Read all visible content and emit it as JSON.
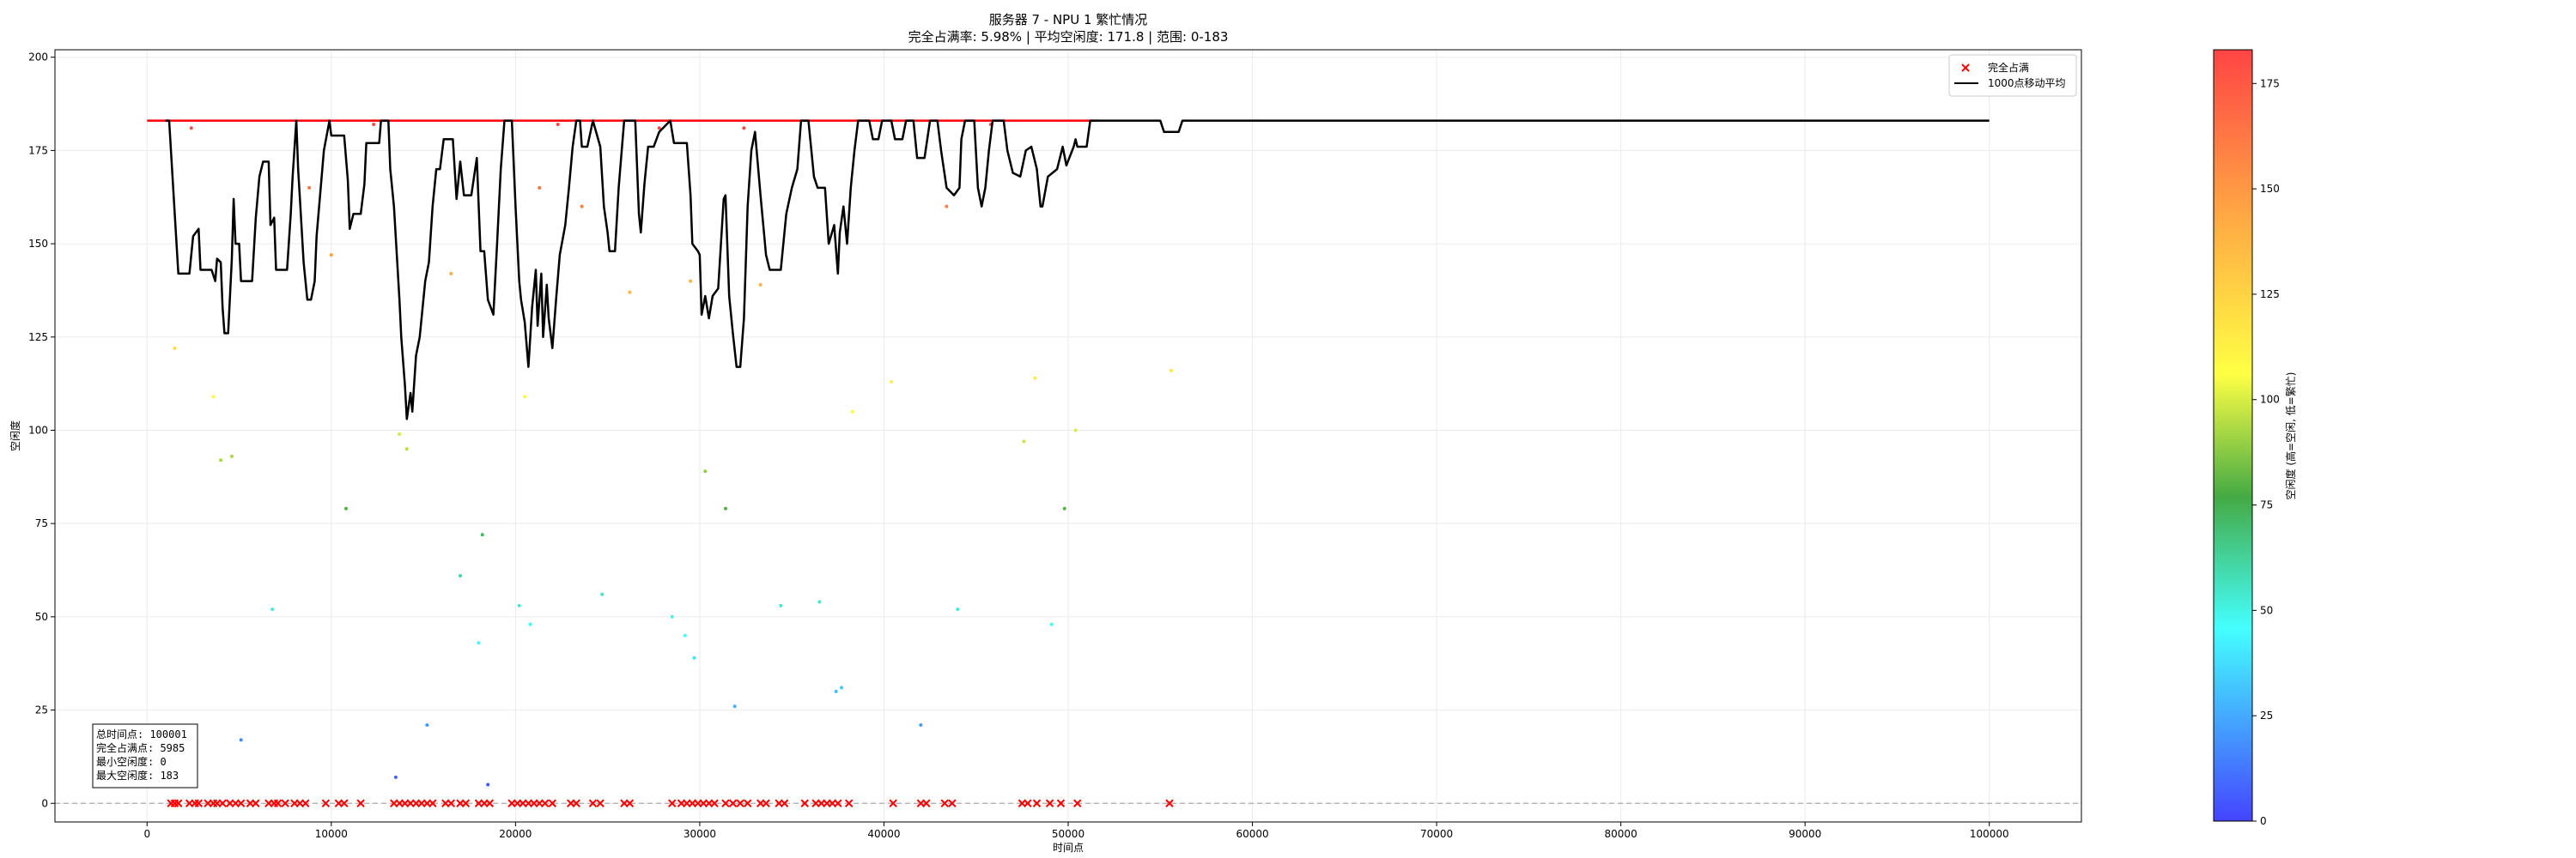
{
  "chart_data": {
    "type": "scatter",
    "title": "服务器 7 - NPU 1 繁忙情况",
    "subtitle": "完全占满率: 5.98% | 平均空闲度: 171.8 | 范围: 0-183",
    "xlabel": "时间点",
    "ylabel": "空闲度",
    "xlim": [
      -5000,
      105000
    ],
    "ylim": [
      -5,
      202
    ],
    "x_ticks": [
      0,
      10000,
      20000,
      30000,
      40000,
      50000,
      60000,
      70000,
      80000,
      90000,
      100000
    ],
    "y_ticks": [
      0,
      25,
      50,
      75,
      100,
      125,
      150,
      175,
      200
    ],
    "grid": true,
    "legend": {
      "position": "top-right",
      "entries": [
        {
          "label": "完全占满",
          "marker": "x",
          "color": "#ff0000"
        },
        {
          "label": "1000点移动平均",
          "marker": "line",
          "color": "#000000"
        }
      ]
    },
    "colorbar": {
      "label": "空闲度 (高=空闲, 低=繁忙)",
      "min": 0,
      "max": 183,
      "ticks": [
        0,
        25,
        50,
        75,
        100,
        125,
        150,
        175
      ],
      "colors": [
        "#4444ff",
        "#44ffff",
        "#44aa44",
        "#ffff44",
        "#ffaa44",
        "#ff4444"
      ]
    },
    "stats_box": [
      "总时间点: 100001",
      "完全占满点: 5985",
      "最小空闲度: 0",
      "最大空闲度: 183"
    ],
    "reference_lines": [
      {
        "y": 183,
        "x_range": [
          0,
          51500
        ],
        "color": "#ff0000"
      },
      {
        "y": 0,
        "style": "dashed",
        "color": "#aaaaaa"
      }
    ],
    "full_occupancy_x": [
      1300,
      1500,
      1700,
      2300,
      2600,
      2800,
      3300,
      3600,
      3800,
      4100,
      4500,
      4800,
      5100,
      5600,
      5900,
      6600,
      6900,
      7100,
      7500,
      8000,
      8300,
      8600,
      9700,
      10400,
      10700,
      11600,
      13400,
      13700,
      14000,
      14300,
      14600,
      14900,
      15200,
      15500,
      16200,
      16500,
      17000,
      17300,
      18000,
      18300,
      18600,
      19800,
      20100,
      20400,
      20700,
      21000,
      21300,
      21600,
      22000,
      23000,
      23300,
      24200,
      24600,
      25900,
      26200,
      28500,
      29000,
      29300,
      29600,
      29900,
      30200,
      30500,
      30800,
      31400,
      31800,
      32200,
      32600,
      33300,
      33600,
      34300,
      34600,
      35700,
      36300,
      36600,
      36900,
      37200,
      37500,
      38100,
      40500,
      42000,
      42300,
      43300,
      43700,
      47500,
      47800,
      48300,
      49000,
      49600,
      50500,
      55500
    ],
    "scatter_points": [
      [
        1500,
        122
      ],
      [
        3600,
        109
      ],
      [
        4000,
        92
      ],
      [
        4600,
        93
      ],
      [
        5100,
        17
      ],
      [
        6800,
        52
      ],
      [
        10000,
        147
      ],
      [
        10800,
        79
      ],
      [
        13500,
        7
      ],
      [
        13700,
        99
      ],
      [
        14100,
        95
      ],
      [
        15200,
        21
      ],
      [
        16500,
        142
      ],
      [
        17000,
        61
      ],
      [
        18000,
        43
      ],
      [
        18200,
        72
      ],
      [
        18500,
        5
      ],
      [
        20200,
        53
      ],
      [
        20500,
        109
      ],
      [
        20800,
        48
      ],
      [
        21300,
        165
      ],
      [
        22300,
        182
      ],
      [
        23600,
        160
      ],
      [
        24700,
        56
      ],
      [
        26200,
        137
      ],
      [
        28500,
        50
      ],
      [
        29200,
        45
      ],
      [
        29500,
        140
      ],
      [
        29700,
        39
      ],
      [
        30300,
        89
      ],
      [
        31400,
        79
      ],
      [
        31900,
        26
      ],
      [
        32400,
        181
      ],
      [
        33300,
        139
      ],
      [
        34400,
        53
      ],
      [
        36500,
        54
      ],
      [
        37400,
        30
      ],
      [
        37700,
        31
      ],
      [
        38300,
        105
      ],
      [
        40400,
        113
      ],
      [
        42000,
        21
      ],
      [
        43400,
        160
      ],
      [
        44000,
        52
      ],
      [
        47600,
        97
      ],
      [
        48200,
        114
      ],
      [
        49100,
        48
      ],
      [
        49800,
        79
      ],
      [
        50400,
        100
      ],
      [
        55600,
        116
      ],
      [
        8800,
        165
      ],
      [
        2400,
        181
      ],
      [
        12300,
        182
      ],
      [
        27800,
        181
      ],
      [
        45800,
        182
      ]
    ],
    "moving_average": [
      [
        1000,
        183
      ],
      [
        1200,
        183
      ],
      [
        1500,
        158
      ],
      [
        1700,
        142
      ],
      [
        2300,
        142
      ],
      [
        2500,
        152
      ],
      [
        2800,
        154
      ],
      [
        2900,
        143
      ],
      [
        3500,
        143
      ],
      [
        3700,
        140
      ],
      [
        3800,
        146
      ],
      [
        4000,
        145
      ],
      [
        4100,
        133
      ],
      [
        4200,
        126
      ],
      [
        4400,
        126
      ],
      [
        4600,
        146
      ],
      [
        4700,
        162
      ],
      [
        4800,
        150
      ],
      [
        5000,
        150
      ],
      [
        5100,
        140
      ],
      [
        5700,
        140
      ],
      [
        5900,
        157
      ],
      [
        6100,
        168
      ],
      [
        6300,
        172
      ],
      [
        6600,
        172
      ],
      [
        6700,
        155
      ],
      [
        6900,
        157
      ],
      [
        7000,
        143
      ],
      [
        7600,
        143
      ],
      [
        7800,
        158
      ],
      [
        7900,
        168
      ],
      [
        8100,
        183
      ],
      [
        8200,
        170
      ],
      [
        8300,
        162
      ],
      [
        8500,
        145
      ],
      [
        8700,
        135
      ],
      [
        8900,
        135
      ],
      [
        9100,
        140
      ],
      [
        9200,
        152
      ],
      [
        9600,
        175
      ],
      [
        9900,
        183
      ],
      [
        10000,
        179
      ],
      [
        10700,
        179
      ],
      [
        10900,
        167
      ],
      [
        11000,
        154
      ],
      [
        11200,
        158
      ],
      [
        11600,
        158
      ],
      [
        11800,
        166
      ],
      [
        11900,
        177
      ],
      [
        12600,
        177
      ],
      [
        12700,
        183
      ],
      [
        13100,
        183
      ],
      [
        13200,
        170
      ],
      [
        13400,
        160
      ],
      [
        13700,
        135
      ],
      [
        13800,
        125
      ],
      [
        14000,
        112
      ],
      [
        14100,
        103
      ],
      [
        14300,
        110
      ],
      [
        14400,
        105
      ],
      [
        14600,
        120
      ],
      [
        14800,
        125
      ],
      [
        15100,
        140
      ],
      [
        15300,
        145
      ],
      [
        15500,
        160
      ],
      [
        15700,
        170
      ],
      [
        15900,
        170
      ],
      [
        16100,
        178
      ],
      [
        16600,
        178
      ],
      [
        16800,
        162
      ],
      [
        17000,
        172
      ],
      [
        17200,
        163
      ],
      [
        17600,
        163
      ],
      [
        17900,
        173
      ],
      [
        18000,
        160
      ],
      [
        18100,
        148
      ],
      [
        18300,
        148
      ],
      [
        18500,
        135
      ],
      [
        18800,
        131
      ],
      [
        19000,
        150
      ],
      [
        19200,
        170
      ],
      [
        19400,
        183
      ],
      [
        19800,
        183
      ],
      [
        20000,
        160
      ],
      [
        20200,
        140
      ],
      [
        20300,
        135
      ],
      [
        20500,
        129
      ],
      [
        20700,
        117
      ],
      [
        20900,
        133
      ],
      [
        21100,
        143
      ],
      [
        21200,
        128
      ],
      [
        21400,
        142
      ],
      [
        21500,
        125
      ],
      [
        21700,
        139
      ],
      [
        21800,
        130
      ],
      [
        22000,
        122
      ],
      [
        22200,
        135
      ],
      [
        22400,
        147
      ],
      [
        22700,
        155
      ],
      [
        22900,
        165
      ],
      [
        23100,
        176
      ],
      [
        23300,
        183
      ],
      [
        23500,
        183
      ],
      [
        23600,
        176
      ],
      [
        23900,
        176
      ],
      [
        24200,
        183
      ],
      [
        24600,
        176
      ],
      [
        24800,
        160
      ],
      [
        25000,
        153
      ],
      [
        25100,
        148
      ],
      [
        25400,
        148
      ],
      [
        25600,
        165
      ],
      [
        25900,
        183
      ],
      [
        26500,
        183
      ],
      [
        26700,
        158
      ],
      [
        26800,
        153
      ],
      [
        27000,
        166
      ],
      [
        27200,
        176
      ],
      [
        27500,
        176
      ],
      [
        27800,
        180
      ],
      [
        28400,
        183
      ],
      [
        28600,
        177
      ],
      [
        29300,
        177
      ],
      [
        29500,
        163
      ],
      [
        29600,
        150
      ],
      [
        29900,
        148
      ],
      [
        30000,
        147
      ],
      [
        30100,
        131
      ],
      [
        30300,
        136
      ],
      [
        30500,
        130
      ],
      [
        30700,
        136
      ],
      [
        31000,
        138
      ],
      [
        31300,
        162
      ],
      [
        31400,
        163
      ],
      [
        31600,
        136
      ],
      [
        31800,
        126
      ],
      [
        32000,
        117
      ],
      [
        32200,
        117
      ],
      [
        32400,
        130
      ],
      [
        32600,
        160
      ],
      [
        32800,
        175
      ],
      [
        33000,
        180
      ],
      [
        33300,
        163
      ],
      [
        33600,
        147
      ],
      [
        33800,
        143
      ],
      [
        34400,
        143
      ],
      [
        34700,
        158
      ],
      [
        35000,
        165
      ],
      [
        35300,
        170
      ],
      [
        35500,
        183
      ],
      [
        35900,
        183
      ],
      [
        36200,
        168
      ],
      [
        36400,
        165
      ],
      [
        36800,
        165
      ],
      [
        37000,
        150
      ],
      [
        37300,
        155
      ],
      [
        37500,
        142
      ],
      [
        37600,
        153
      ],
      [
        37800,
        160
      ],
      [
        38000,
        150
      ],
      [
        38200,
        165
      ],
      [
        38400,
        175
      ],
      [
        38600,
        183
      ],
      [
        39200,
        183
      ],
      [
        39400,
        178
      ],
      [
        39700,
        178
      ],
      [
        39900,
        183
      ],
      [
        40400,
        183
      ],
      [
        40600,
        178
      ],
      [
        41000,
        178
      ],
      [
        41200,
        183
      ],
      [
        41600,
        183
      ],
      [
        41800,
        173
      ],
      [
        42200,
        173
      ],
      [
        42500,
        183
      ],
      [
        42900,
        183
      ],
      [
        43100,
        175
      ],
      [
        43400,
        165
      ],
      [
        43800,
        163
      ],
      [
        44100,
        165
      ],
      [
        44200,
        178
      ],
      [
        44400,
        183
      ],
      [
        44900,
        183
      ],
      [
        45100,
        165
      ],
      [
        45300,
        160
      ],
      [
        45500,
        165
      ],
      [
        45700,
        175
      ],
      [
        45900,
        183
      ],
      [
        46500,
        183
      ],
      [
        46700,
        175
      ],
      [
        47000,
        169
      ],
      [
        47400,
        168
      ],
      [
        47700,
        175
      ],
      [
        48000,
        176
      ],
      [
        48300,
        170
      ],
      [
        48500,
        160
      ],
      [
        48600,
        160
      ],
      [
        48900,
        168
      ],
      [
        49400,
        170
      ],
      [
        49700,
        176
      ],
      [
        49900,
        171
      ],
      [
        50300,
        176
      ],
      [
        50400,
        178
      ],
      [
        50500,
        176
      ],
      [
        51000,
        176
      ],
      [
        51200,
        183
      ],
      [
        55000,
        183
      ],
      [
        55200,
        180
      ],
      [
        56000,
        180
      ],
      [
        56200,
        183
      ],
      [
        100000,
        183
      ]
    ]
  }
}
